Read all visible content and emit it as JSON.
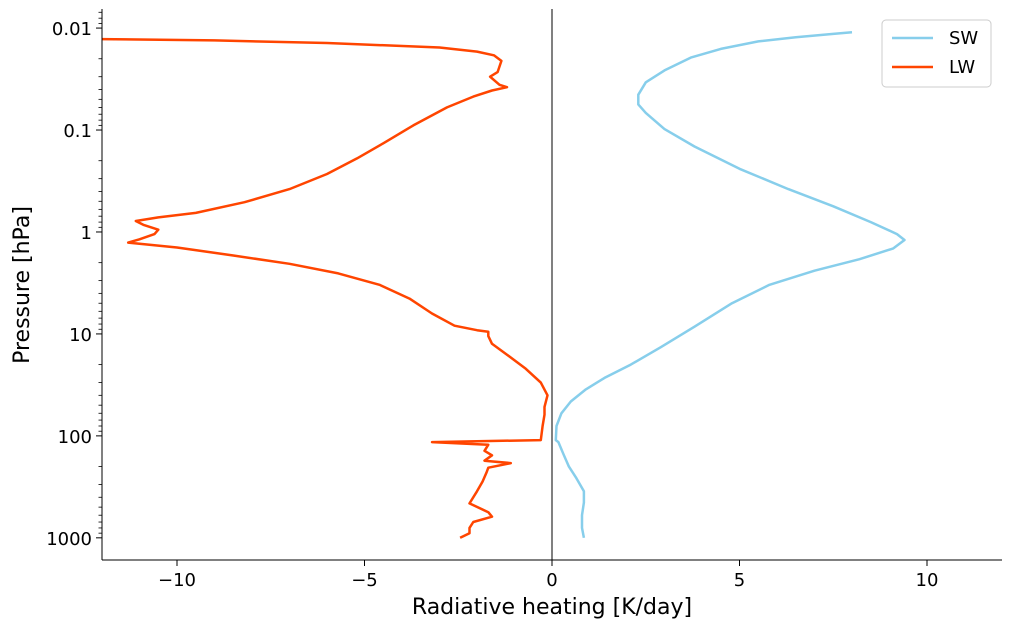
{
  "chart_data": {
    "type": "line",
    "xlabel": "Radiative heating [K/day]",
    "ylabel": "Pressure [hPa]",
    "xlim": [
      -12,
      12
    ],
    "ylim": [
      1650,
      0.0065
    ],
    "y_scale": "log",
    "y_inverted": true,
    "grid": false,
    "legend_position": "top-right",
    "x_ticks": [
      {
        "value": -10,
        "label": "−10"
      },
      {
        "value": -5,
        "label": "−5"
      },
      {
        "value": 0,
        "label": "0"
      },
      {
        "value": 5,
        "label": "5"
      },
      {
        "value": 10,
        "label": "10"
      }
    ],
    "y_ticks": [
      {
        "value": 0.01,
        "label": "0.01"
      },
      {
        "value": 0.1,
        "label": "0.1"
      },
      {
        "value": 1,
        "label": "1"
      },
      {
        "value": 10,
        "label": "10"
      },
      {
        "value": 100,
        "label": "100"
      },
      {
        "value": 1000,
        "label": "1000"
      }
    ],
    "zero_line_x": 0,
    "series": [
      {
        "name": "SW",
        "color": "#87ceeb",
        "points": [
          [
            8.0,
            0.011
          ],
          [
            7.5,
            0.0114
          ],
          [
            6.5,
            0.0123
          ],
          [
            5.5,
            0.0135
          ],
          [
            4.5,
            0.016
          ],
          [
            3.7,
            0.0195
          ],
          [
            3.0,
            0.026
          ],
          [
            2.5,
            0.034
          ],
          [
            2.3,
            0.045
          ],
          [
            2.3,
            0.056
          ],
          [
            2.5,
            0.068
          ],
          [
            3.0,
            0.098
          ],
          [
            3.8,
            0.145
          ],
          [
            5.0,
            0.24
          ],
          [
            6.3,
            0.38
          ],
          [
            7.5,
            0.56
          ],
          [
            8.5,
            0.8
          ],
          [
            9.2,
            1.05
          ],
          [
            9.4,
            1.2
          ],
          [
            9.1,
            1.45
          ],
          [
            8.2,
            1.85
          ],
          [
            7.0,
            2.4
          ],
          [
            5.8,
            3.3
          ],
          [
            4.8,
            5.0
          ],
          [
            3.8,
            8.5
          ],
          [
            2.9,
            13.5
          ],
          [
            2.1,
            20.0
          ],
          [
            1.4,
            27.0
          ],
          [
            0.9,
            35.0
          ],
          [
            0.5,
            46.0
          ],
          [
            0.25,
            60.0
          ],
          [
            0.12,
            80.0
          ],
          [
            0.1,
            110.0
          ],
          [
            0.17,
            115.0
          ],
          [
            0.3,
            150.0
          ],
          [
            0.45,
            200.0
          ],
          [
            0.65,
            260.0
          ],
          [
            0.85,
            350.0
          ],
          [
            0.85,
            450.0
          ],
          [
            0.8,
            600.0
          ],
          [
            0.8,
            800.0
          ],
          [
            0.85,
            1000.0
          ]
        ]
      },
      {
        "name": "LW",
        "color": "#ff4500",
        "points": [
          [
            -12.2,
            0.0128
          ],
          [
            -9.0,
            0.0132
          ],
          [
            -6.0,
            0.014
          ],
          [
            -3.0,
            0.0155
          ],
          [
            -2.0,
            0.017
          ],
          [
            -1.55,
            0.0185
          ],
          [
            -1.35,
            0.021
          ],
          [
            -1.45,
            0.027
          ],
          [
            -1.65,
            0.03
          ],
          [
            -1.4,
            0.036
          ],
          [
            -1.2,
            0.038
          ],
          [
            -1.6,
            0.041
          ],
          [
            -2.1,
            0.047
          ],
          [
            -2.8,
            0.06
          ],
          [
            -3.7,
            0.09
          ],
          [
            -4.5,
            0.135
          ],
          [
            -5.2,
            0.19
          ],
          [
            -6.0,
            0.27
          ],
          [
            -7.0,
            0.38
          ],
          [
            -8.2,
            0.51
          ],
          [
            -9.5,
            0.65
          ],
          [
            -10.5,
            0.72
          ],
          [
            -11.1,
            0.78
          ],
          [
            -10.9,
            0.85
          ],
          [
            -10.5,
            0.95
          ],
          [
            -10.6,
            1.05
          ],
          [
            -11.0,
            1.18
          ],
          [
            -11.3,
            1.27
          ],
          [
            -10.0,
            1.42
          ],
          [
            -8.5,
            1.7
          ],
          [
            -7.0,
            2.05
          ],
          [
            -5.7,
            2.55
          ],
          [
            -4.6,
            3.3
          ],
          [
            -3.8,
            4.5
          ],
          [
            -3.2,
            6.3
          ],
          [
            -2.6,
            8.3
          ],
          [
            -2.0,
            9.2
          ],
          [
            -1.7,
            9.5
          ],
          [
            -1.7,
            10.5
          ],
          [
            -1.6,
            12.5
          ],
          [
            -1.2,
            16.0
          ],
          [
            -0.7,
            22.0
          ],
          [
            -0.3,
            30.0
          ],
          [
            -0.12,
            40.0
          ],
          [
            -0.2,
            52.0
          ],
          [
            -0.2,
            62.0
          ],
          [
            -0.25,
            80.0
          ],
          [
            -0.3,
            110.0
          ],
          [
            -3.2,
            115.0
          ],
          [
            -1.7,
            122.0
          ],
          [
            -1.8,
            140.0
          ],
          [
            -1.6,
            155.0
          ],
          [
            -1.8,
            175.0
          ],
          [
            -1.1,
            185.0
          ],
          [
            -1.7,
            205.0
          ],
          [
            -1.75,
            230.0
          ],
          [
            -1.85,
            280.0
          ],
          [
            -2.0,
            350.0
          ],
          [
            -2.2,
            460.0
          ],
          [
            -1.7,
            560.0
          ],
          [
            -1.6,
            620.0
          ],
          [
            -2.1,
            700.0
          ],
          [
            -2.2,
            800.0
          ],
          [
            -2.2,
            900.0
          ],
          [
            -2.4,
            980.0
          ],
          [
            -2.45,
            1000.0
          ]
        ]
      }
    ]
  }
}
